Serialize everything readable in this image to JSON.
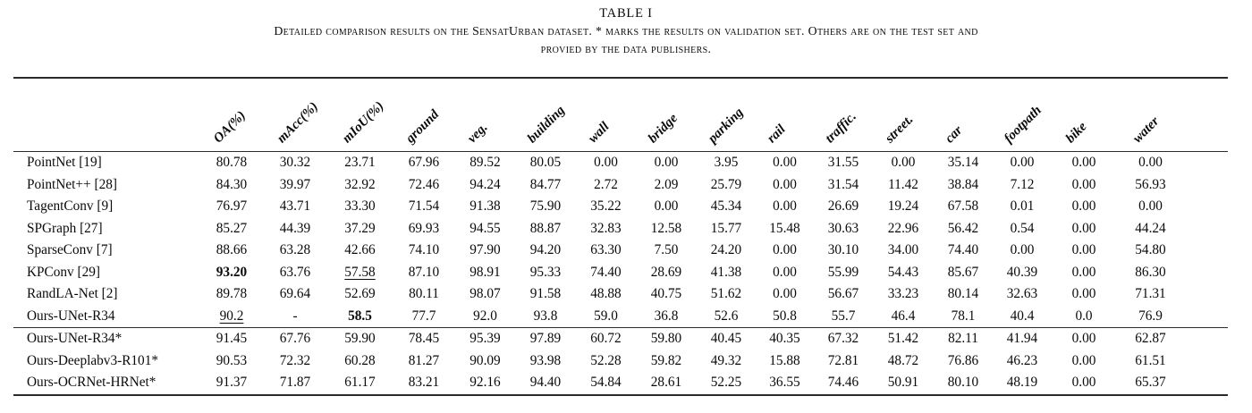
{
  "caption": {
    "label": "TABLE I",
    "line1": "Detailed comparison results on the SensatUrban dataset. * marks the results on validation set. Others are on the test set and",
    "line2": "provied by the data publishers."
  },
  "table": {
    "columns": [
      "OA(%)",
      "mAcc(%)",
      "mIoU(%)",
      "ground",
      "veg.",
      "building",
      "wall",
      "bridge",
      "parking",
      "rail",
      "traffic.",
      "street.",
      "car",
      "footpath",
      "bike",
      "water"
    ],
    "groups": [
      {
        "rows": [
          {
            "label": "PointNet [19]",
            "values": [
              "80.78",
              "30.32",
              "23.71",
              "67.96",
              "89.52",
              "80.05",
              "0.00",
              "0.00",
              "3.95",
              "0.00",
              "31.55",
              "0.00",
              "35.14",
              "0.00",
              "0.00",
              "0.00"
            ],
            "bold": [],
            "underline": []
          },
          {
            "label": "PointNet++ [28]",
            "values": [
              "84.30",
              "39.97",
              "32.92",
              "72.46",
              "94.24",
              "84.77",
              "2.72",
              "2.09",
              "25.79",
              "0.00",
              "31.54",
              "11.42",
              "38.84",
              "7.12",
              "0.00",
              "56.93"
            ],
            "bold": [],
            "underline": []
          },
          {
            "label": "TagentConv [9]",
            "values": [
              "76.97",
              "43.71",
              "33.30",
              "71.54",
              "91.38",
              "75.90",
              "35.22",
              "0.00",
              "45.34",
              "0.00",
              "26.69",
              "19.24",
              "67.58",
              "0.01",
              "0.00",
              "0.00"
            ],
            "bold": [],
            "underline": []
          },
          {
            "label": "SPGraph [27]",
            "values": [
              "85.27",
              "44.39",
              "37.29",
              "69.93",
              "94.55",
              "88.87",
              "32.83",
              "12.58",
              "15.77",
              "15.48",
              "30.63",
              "22.96",
              "56.42",
              "0.54",
              "0.00",
              "44.24"
            ],
            "bold": [],
            "underline": []
          },
          {
            "label": "SparseConv [7]",
            "values": [
              "88.66",
              "63.28",
              "42.66",
              "74.10",
              "97.90",
              "94.20",
              "63.30",
              "7.50",
              "24.20",
              "0.00",
              "30.10",
              "34.00",
              "74.40",
              "0.00",
              "0.00",
              "54.80"
            ],
            "bold": [],
            "underline": []
          },
          {
            "label": "KPConv [29]",
            "values": [
              "93.20",
              "63.76",
              "57.58",
              "87.10",
              "98.91",
              "95.33",
              "74.40",
              "28.69",
              "41.38",
              "0.00",
              "55.99",
              "54.43",
              "85.67",
              "40.39",
              "0.00",
              "86.30"
            ],
            "bold": [
              0
            ],
            "underline": [
              2
            ]
          },
          {
            "label": "RandLA-Net [2]",
            "values": [
              "89.78",
              "69.64",
              "52.69",
              "80.11",
              "98.07",
              "91.58",
              "48.88",
              "40.75",
              "51.62",
              "0.00",
              "56.67",
              "33.23",
              "80.14",
              "32.63",
              "0.00",
              "71.31"
            ],
            "bold": [],
            "underline": []
          },
          {
            "label": "Ours-UNet-R34",
            "values": [
              "90.2",
              "-",
              "58.5",
              "77.7",
              "92.0",
              "93.8",
              "59.0",
              "36.8",
              "52.6",
              "50.8",
              "55.7",
              "46.4",
              "78.1",
              "40.4",
              "0.0",
              "76.9"
            ],
            "bold": [
              2
            ],
            "underline": [
              0
            ]
          }
        ]
      },
      {
        "rows": [
          {
            "label": "Ours-UNet-R34*",
            "values": [
              "91.45",
              "67.76",
              "59.90",
              "78.45",
              "95.39",
              "97.89",
              "60.72",
              "59.80",
              "40.45",
              "40.35",
              "67.32",
              "51.42",
              "82.11",
              "41.94",
              "0.00",
              "62.87"
            ],
            "bold": [],
            "underline": []
          },
          {
            "label": "Ours-Deeplabv3-R101*",
            "values": [
              "90.53",
              "72.32",
              "60.28",
              "81.27",
              "90.09",
              "93.98",
              "52.28",
              "59.82",
              "49.32",
              "15.88",
              "72.81",
              "48.72",
              "76.86",
              "46.23",
              "0.00",
              "61.51"
            ],
            "bold": [],
            "underline": []
          },
          {
            "label": "Ours-OCRNet-HRNet*",
            "values": [
              "91.37",
              "71.87",
              "61.17",
              "83.21",
              "92.16",
              "94.40",
              "54.84",
              "28.61",
              "52.25",
              "36.55",
              "74.46",
              "50.91",
              "80.10",
              "48.19",
              "0.00",
              "65.37"
            ],
            "bold": [],
            "underline": []
          }
        ]
      }
    ]
  }
}
